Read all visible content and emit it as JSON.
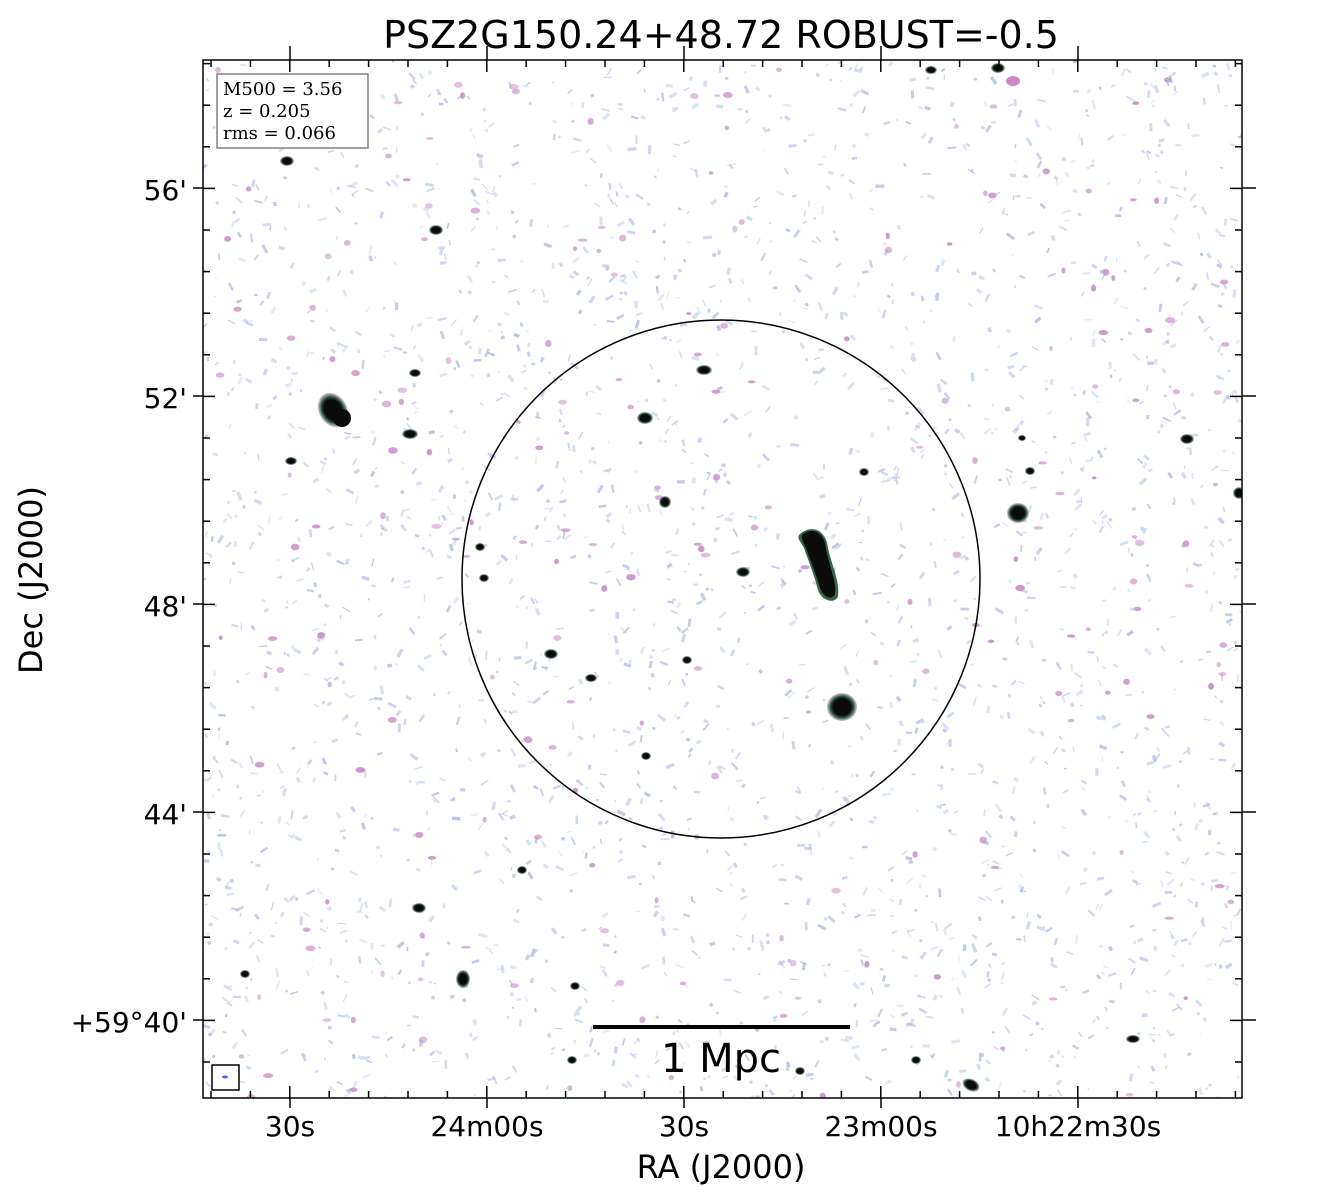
{
  "figure": {
    "title": "PSZ2G150.24+48.72 ROBUST=-0.5",
    "xlabel": "RA (J2000)",
    "ylabel": "Dec (J2000)",
    "x_ticks": [
      "30s",
      "24m00s",
      "30s",
      "23m00s",
      "10h22m30s"
    ],
    "y_ticks": [
      "56'",
      "52'",
      "48'",
      "44'",
      "+59°40'"
    ],
    "info_box": {
      "line1": "M500 = 3.56",
      "line2": "z = 0.205",
      "line3": "rms = 0.066"
    },
    "scalebar_label": "1 Mpc",
    "colors": {
      "noise_blue": "#aab8e6",
      "noise_purple": "#c98ac6",
      "source_core": "#0b0b0b",
      "source_halo": "#3f7a52"
    }
  }
}
